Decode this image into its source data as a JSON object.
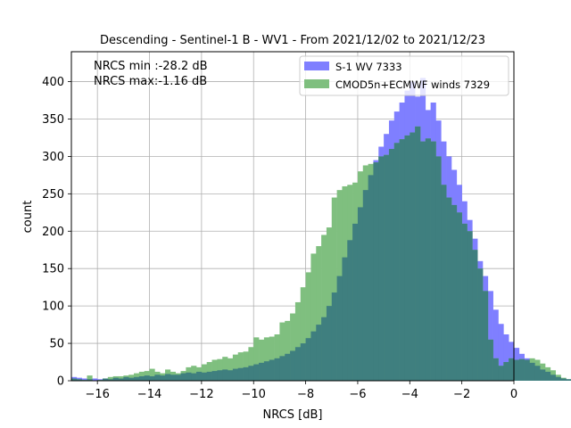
{
  "chart_data": {
    "type": "bar",
    "title": "Descending - Sentinel-1 B - WV1 - From 2021/12/02 to 2021/12/23",
    "xlabel": "NRCS [dB]",
    "ylabel": "count",
    "xlim": [
      -17,
      0
    ],
    "ylim": [
      0,
      440
    ],
    "x_ticks": [
      -16,
      -14,
      -12,
      -10,
      -8,
      -6,
      -4,
      -2,
      0
    ],
    "x_tick_labels": [
      "−16",
      "−14",
      "−12",
      "−10",
      "−8",
      "−6",
      "−4",
      "−2",
      "0"
    ],
    "y_ticks": [
      0,
      50,
      100,
      150,
      200,
      250,
      300,
      350,
      400
    ],
    "y_tick_labels": [
      "0",
      "50",
      "100",
      "150",
      "200",
      "250",
      "300",
      "350",
      "400"
    ],
    "grid": true,
    "legend_position": "top-right",
    "annotations": [
      "NRCS min :-28.2 dB",
      "NRCS max:-1.16 dB"
    ],
    "bin_start": -17.0,
    "bin_width": 0.2,
    "series": [
      {
        "name": "S-1 WV 7333",
        "color": "#7f7fff",
        "values": [
          5,
          4,
          3,
          2,
          3,
          2,
          3,
          2,
          4,
          3,
          5,
          4,
          5,
          6,
          7,
          6,
          8,
          7,
          9,
          8,
          8,
          10,
          11,
          10,
          12,
          11,
          12,
          13,
          14,
          15,
          14,
          16,
          17,
          18,
          20,
          22,
          24,
          26,
          28,
          30,
          33,
          36,
          40,
          45,
          50,
          57,
          66,
          75,
          85,
          100,
          118,
          140,
          165,
          188,
          210,
          232,
          255,
          275,
          295,
          313,
          330,
          348,
          360,
          372,
          388,
          400,
          380,
          405,
          362,
          372,
          348,
          320,
          300,
          282,
          262,
          240,
          215,
          190,
          160,
          140,
          120,
          95,
          76,
          62,
          52,
          44,
          36,
          30,
          24,
          20,
          15,
          12,
          8,
          5,
          3,
          2,
          1,
          1,
          1,
          0
        ]
      },
      {
        "name": "CMOD5n+ECMWF winds 7329",
        "color": "#7fbf7f",
        "values": [
          3,
          2,
          1,
          7,
          0,
          1,
          3,
          5,
          6,
          6,
          7,
          8,
          10,
          12,
          13,
          16,
          12,
          10,
          15,
          12,
          10,
          13,
          18,
          20,
          18,
          22,
          25,
          28,
          29,
          32,
          30,
          35,
          38,
          39,
          45,
          58,
          55,
          58,
          59,
          62,
          78,
          80,
          90,
          105,
          125,
          145,
          170,
          180,
          195,
          205,
          245,
          255,
          260,
          262,
          265,
          280,
          288,
          290,
          292,
          300,
          302,
          310,
          318,
          323,
          328,
          332,
          340,
          320,
          324,
          320,
          300,
          262,
          245,
          235,
          225,
          210,
          200,
          175,
          150,
          120,
          55,
          30,
          20,
          25,
          30,
          28,
          29,
          28,
          30,
          28,
          23,
          18,
          14,
          8,
          4,
          2,
          1,
          0,
          0,
          0
        ]
      }
    ]
  }
}
